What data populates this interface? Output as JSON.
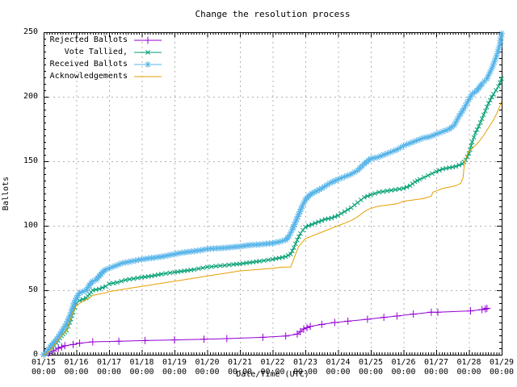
{
  "window": {
    "background": "#ffffff"
  },
  "chart_data": {
    "type": "line",
    "title": "Change the resolution process",
    "xlabel": "Date/Time (UTC)",
    "ylabel": "Ballots",
    "x_unit": "days since 01/15 00:00 UTC",
    "xlim": [
      0,
      14
    ],
    "ylim": [
      0,
      250
    ],
    "grid": true,
    "grid_color": "#b0b0b0",
    "axis_color": "#000000",
    "legend_position": "top-left-inside",
    "y_ticks": [
      0,
      50,
      100,
      150,
      200,
      250
    ],
    "y_minor_step": 5,
    "x_minor_step_hours": 2,
    "x_ticks": [
      {
        "date": "01/15",
        "time": "00:00"
      },
      {
        "date": "01/16",
        "time": "00:00"
      },
      {
        "date": "01/17",
        "time": "00:00"
      },
      {
        "date": "01/18",
        "time": "00:00"
      },
      {
        "date": "01/19",
        "time": "00:00"
      },
      {
        "date": "01/20",
        "time": "00:00"
      },
      {
        "date": "01/21",
        "time": "00:00"
      },
      {
        "date": "01/22",
        "time": "00:00"
      },
      {
        "date": "01/23",
        "time": "00:00"
      },
      {
        "date": "01/24",
        "time": "00:00"
      },
      {
        "date": "01/25",
        "time": "00:00"
      },
      {
        "date": "01/26",
        "time": "00:00"
      },
      {
        "date": "01/27",
        "time": "00:00"
      },
      {
        "date": "01/28",
        "time": "00:00"
      },
      {
        "date": "01/29",
        "time": "00:00"
      }
    ],
    "series": [
      {
        "name": "Rejected Ballots",
        "color": "#9400d3",
        "marker": "plus",
        "marker_size": 4.5,
        "densify": 0,
        "x": [
          0,
          0.15,
          0.3,
          0.45,
          0.55,
          0.65,
          0.9,
          1.1,
          1.5,
          2.3,
          3.1,
          4.0,
          4.9,
          5.6,
          6.7,
          7.4,
          7.75,
          7.85,
          7.95,
          8.05,
          8.15,
          8.5,
          8.9,
          9.3,
          9.9,
          10.4,
          10.8,
          11.3,
          11.85,
          12.05,
          13.05,
          13.4,
          13.5,
          13.55
        ],
        "values": [
          0,
          1,
          3,
          5,
          6,
          7,
          8,
          9,
          10,
          10.5,
          11,
          11.5,
          12,
          12.5,
          13.5,
          14.5,
          16,
          18,
          20,
          21,
          22,
          23.5,
          25,
          26,
          27.5,
          29,
          30,
          31.5,
          33,
          33,
          34,
          35,
          35.5,
          36
        ]
      },
      {
        "name": "Vote Tallied,",
        "color": "#009e73",
        "marker": "cross",
        "marker_size": 3.5,
        "densify": 6,
        "x": [
          0,
          0.1,
          0.25,
          0.4,
          0.5,
          0.6,
          0.7,
          0.8,
          0.9,
          1.0,
          1.1,
          1.2,
          1.3,
          1.4,
          1.5,
          1.7,
          1.9,
          2.0,
          2.25,
          2.5,
          2.75,
          3.0,
          3.3,
          3.6,
          4.0,
          4.3,
          4.6,
          5.0,
          5.4,
          5.8,
          6.0,
          6.3,
          6.6,
          7.0,
          7.2,
          7.4,
          7.55,
          7.65,
          7.75,
          7.85,
          8.0,
          8.2,
          8.4,
          8.6,
          8.8,
          9.0,
          9.2,
          9.4,
          9.6,
          9.8,
          10.0,
          10.25,
          10.5,
          10.75,
          11.0,
          11.2,
          11.35,
          11.5,
          11.75,
          12.0,
          12.2,
          12.4,
          12.6,
          12.8,
          12.9,
          13.0,
          13.1,
          13.2,
          13.3,
          13.45,
          13.6,
          13.75,
          13.9,
          14.0
        ],
        "values": [
          0,
          2,
          5,
          9,
          13,
          16,
          19,
          25,
          33,
          40,
          42,
          43,
          44,
          47,
          50,
          51,
          53,
          55,
          56,
          58,
          59,
          60,
          61,
          62.5,
          64,
          65,
          66,
          68,
          69,
          70,
          70.5,
          71.5,
          72.5,
          74,
          75,
          76,
          78,
          83,
          89,
          94,
          99,
          101,
          103,
          105,
          106,
          108,
          111,
          114,
          118,
          122,
          124,
          126,
          127,
          128,
          129,
          131,
          134,
          136,
          139,
          142,
          144,
          145,
          146,
          148,
          151,
          156,
          165,
          172,
          177,
          186,
          195,
          202,
          208,
          214
        ]
      },
      {
        "name": "Received Ballots",
        "color": "#56b4e9",
        "marker": "asterisk",
        "marker_size": 4,
        "densify": 5,
        "x": [
          0,
          0.1,
          0.2,
          0.3,
          0.4,
          0.5,
          0.6,
          0.7,
          0.8,
          0.9,
          1.0,
          1.1,
          1.2,
          1.3,
          1.4,
          1.5,
          1.6,
          1.7,
          1.8,
          1.9,
          2.0,
          2.2,
          2.4,
          2.6,
          2.8,
          3.0,
          3.3,
          3.6,
          3.9,
          4.2,
          4.5,
          4.8,
          5.0,
          5.3,
          5.6,
          6.0,
          6.3,
          6.6,
          7.0,
          7.2,
          7.4,
          7.5,
          7.6,
          7.7,
          7.8,
          7.9,
          8.0,
          8.1,
          8.2,
          8.35,
          8.5,
          8.75,
          9.0,
          9.2,
          9.4,
          9.6,
          9.8,
          10.0,
          10.2,
          10.4,
          10.6,
          10.8,
          11.0,
          11.2,
          11.4,
          11.6,
          11.8,
          12.0,
          12.2,
          12.4,
          12.55,
          12.7,
          12.85,
          13.0,
          13.1,
          13.25,
          13.4,
          13.55,
          13.7,
          13.85,
          13.95,
          14.0
        ],
        "values": [
          0,
          2,
          6,
          9,
          12,
          16,
          20,
          24,
          30,
          38,
          44,
          48,
          49,
          50,
          54,
          57,
          58,
          61,
          64,
          66,
          67,
          69,
          71,
          72,
          73,
          74,
          75,
          76,
          77.5,
          79,
          80,
          81,
          82,
          82.5,
          83,
          84,
          85,
          85.5,
          86.5,
          87.5,
          89,
          92,
          97,
          103,
          109,
          115,
          120,
          123,
          125,
          127,
          129,
          133,
          136,
          138,
          140,
          143,
          148,
          152,
          153,
          155,
          157,
          159,
          162,
          164,
          166,
          168,
          169,
          171,
          173,
          175,
          178,
          185,
          191,
          198,
          202,
          205,
          210,
          214,
          222,
          232,
          241,
          249
        ]
      },
      {
        "name": "Acknowledgements",
        "color": "#e69f00",
        "marker": "none",
        "marker_size": 0,
        "densify": 0,
        "x": [
          0,
          0.1,
          0.25,
          0.4,
          0.5,
          0.6,
          0.7,
          0.8,
          0.9,
          1.0,
          1.1,
          1.25,
          1.4,
          1.5,
          1.7,
          1.9,
          2.0,
          2.25,
          2.5,
          2.75,
          3.0,
          3.25,
          3.5,
          3.75,
          4.0,
          4.25,
          4.5,
          4.75,
          5.0,
          5.25,
          5.5,
          5.75,
          6.0,
          6.25,
          6.5,
          6.75,
          7.0,
          7.3,
          7.55,
          7.6,
          7.7,
          7.8,
          7.9,
          8.0,
          8.2,
          8.4,
          8.6,
          8.8,
          9.0,
          9.2,
          9.4,
          9.6,
          9.8,
          9.95,
          10.2,
          10.5,
          10.8,
          11.0,
          11.3,
          11.6,
          11.85,
          11.9,
          12.0,
          12.2,
          12.4,
          12.6,
          12.75,
          12.82,
          12.87,
          12.95,
          13.0,
          13.15,
          13.3,
          13.45,
          13.6,
          13.75,
          13.85,
          13.95,
          14.0
        ],
        "values": [
          0,
          1,
          5,
          10,
          13,
          16,
          19,
          26,
          33,
          38,
          40,
          42,
          44,
          46,
          47,
          48,
          49,
          50,
          51,
          52,
          53,
          54,
          55,
          56,
          57,
          58,
          59,
          60,
          61,
          62,
          63,
          64,
          65,
          65.5,
          66,
          66.5,
          67,
          68,
          68,
          71,
          78,
          84,
          87,
          90,
          92,
          94,
          96,
          98,
          100,
          102,
          104,
          107,
          111,
          113,
          115,
          116,
          117,
          119,
          120,
          121,
          123,
          126,
          127,
          129,
          130,
          131,
          133,
          137,
          150,
          155,
          158,
          161,
          165,
          170,
          176,
          182,
          187,
          193,
          197
        ]
      }
    ]
  }
}
